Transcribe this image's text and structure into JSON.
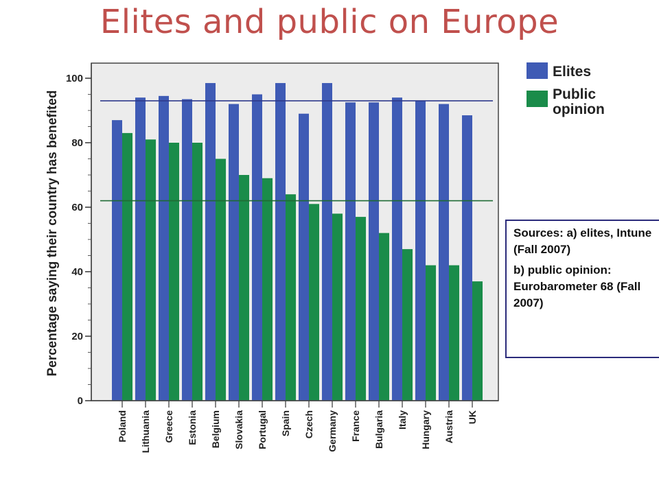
{
  "slide": {
    "title": "Elites and public on Europe"
  },
  "sources": {
    "line_a": "Sources: a) elites, Intune (Fall 2007)",
    "line_b": "b) public opinion: Eurobarometer 68 (Fall 2007)"
  },
  "chart_data": {
    "type": "bar",
    "title": "",
    "xlabel": "",
    "ylabel": "Percentage saying their country has benefited",
    "ylim": [
      0,
      105
    ],
    "yticks": [
      0,
      20,
      40,
      60,
      80,
      100
    ],
    "categories": [
      "Poland",
      "Lithuania",
      "Greece",
      "Estonia",
      "Belgium",
      "Slovakia",
      "Portugal",
      "Spain",
      "Czech",
      "Germany",
      "France",
      "Bulgaria",
      "Italy",
      "Hungary",
      "Austria",
      "UK"
    ],
    "series": [
      {
        "name": "Elites",
        "color": "#3f5bb5",
        "values": [
          87,
          94,
          94.5,
          93.5,
          98.5,
          92,
          95,
          98.5,
          89,
          98.5,
          92.5,
          92.5,
          94,
          93,
          92,
          88.5
        ]
      },
      {
        "name": "Public opinion",
        "color": "#1a8c4a",
        "values": [
          83,
          81,
          80,
          80,
          75,
          70,
          69,
          64,
          61,
          58,
          57,
          52,
          47,
          42,
          42,
          37
        ]
      }
    ],
    "reference_lines": [
      {
        "value": 93,
        "color": "#2e3a8c"
      },
      {
        "value": 62,
        "color": "#1f6b35"
      }
    ],
    "grid": false,
    "legend": {
      "placement": "top-right",
      "entries": [
        "Elites",
        "Public opinion"
      ]
    }
  }
}
